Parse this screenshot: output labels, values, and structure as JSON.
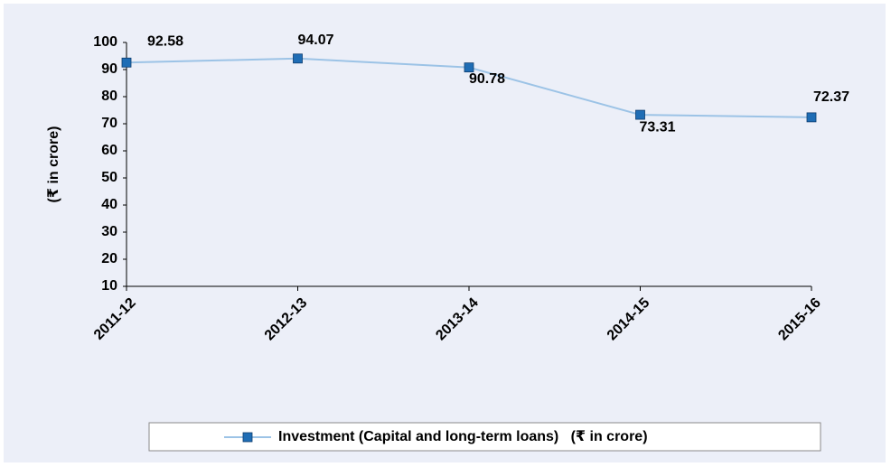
{
  "chart_data": {
    "type": "line",
    "y_label": "(₹ in crore)",
    "categories": [
      "2011-12",
      "2012-13",
      "2013-14",
      "2014-15",
      "2015-16"
    ],
    "series": [
      {
        "name": "Investment (Capital and long-term loans)   (₹ in crore)",
        "color": "#9cc3e6",
        "marker_color": "#1f6db5",
        "values": [
          92.58,
          94.07,
          90.78,
          73.31,
          72.37
        ]
      }
    ],
    "ylim": [
      10,
      100
    ],
    "yticks": [
      10,
      20,
      30,
      40,
      50,
      60,
      70,
      80,
      90,
      100
    ],
    "grid": false,
    "legend": "bottom"
  }
}
